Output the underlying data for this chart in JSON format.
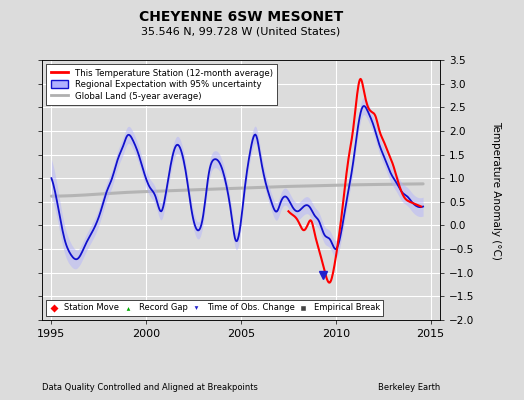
{
  "title": "CHEYENNE 6SW MESONET",
  "subtitle": "35.546 N, 99.728 W (United States)",
  "ylabel": "Temperature Anomaly (°C)",
  "xlabel_left": "Data Quality Controlled and Aligned at Breakpoints",
  "xlabel_right": "Berkeley Earth",
  "xlim": [
    1994.5,
    2015.5
  ],
  "ylim": [
    -2.0,
    3.5
  ],
  "yticks": [
    -2.0,
    -1.5,
    -1.0,
    -0.5,
    0.0,
    0.5,
    1.0,
    1.5,
    2.0,
    2.5,
    3.0,
    3.5
  ],
  "xticks": [
    1995,
    2000,
    2005,
    2010,
    2015
  ],
  "background_color": "#dcdcdc",
  "plot_bg_color": "#dcdcdc",
  "red_color": "#ff0000",
  "blue_color": "#1111cc",
  "blue_fill_color": "#b0b0ff",
  "gray_color": "#b0b0b0",
  "legend_station_move_color": "#ff0000",
  "legend_record_gap_color": "#00aa00",
  "legend_time_obs_color": "#2222cc",
  "legend_empirical_color": "#444444",
  "marker_x_time_obs": 2009.3,
  "marker_y_time_obs": -1.05
}
